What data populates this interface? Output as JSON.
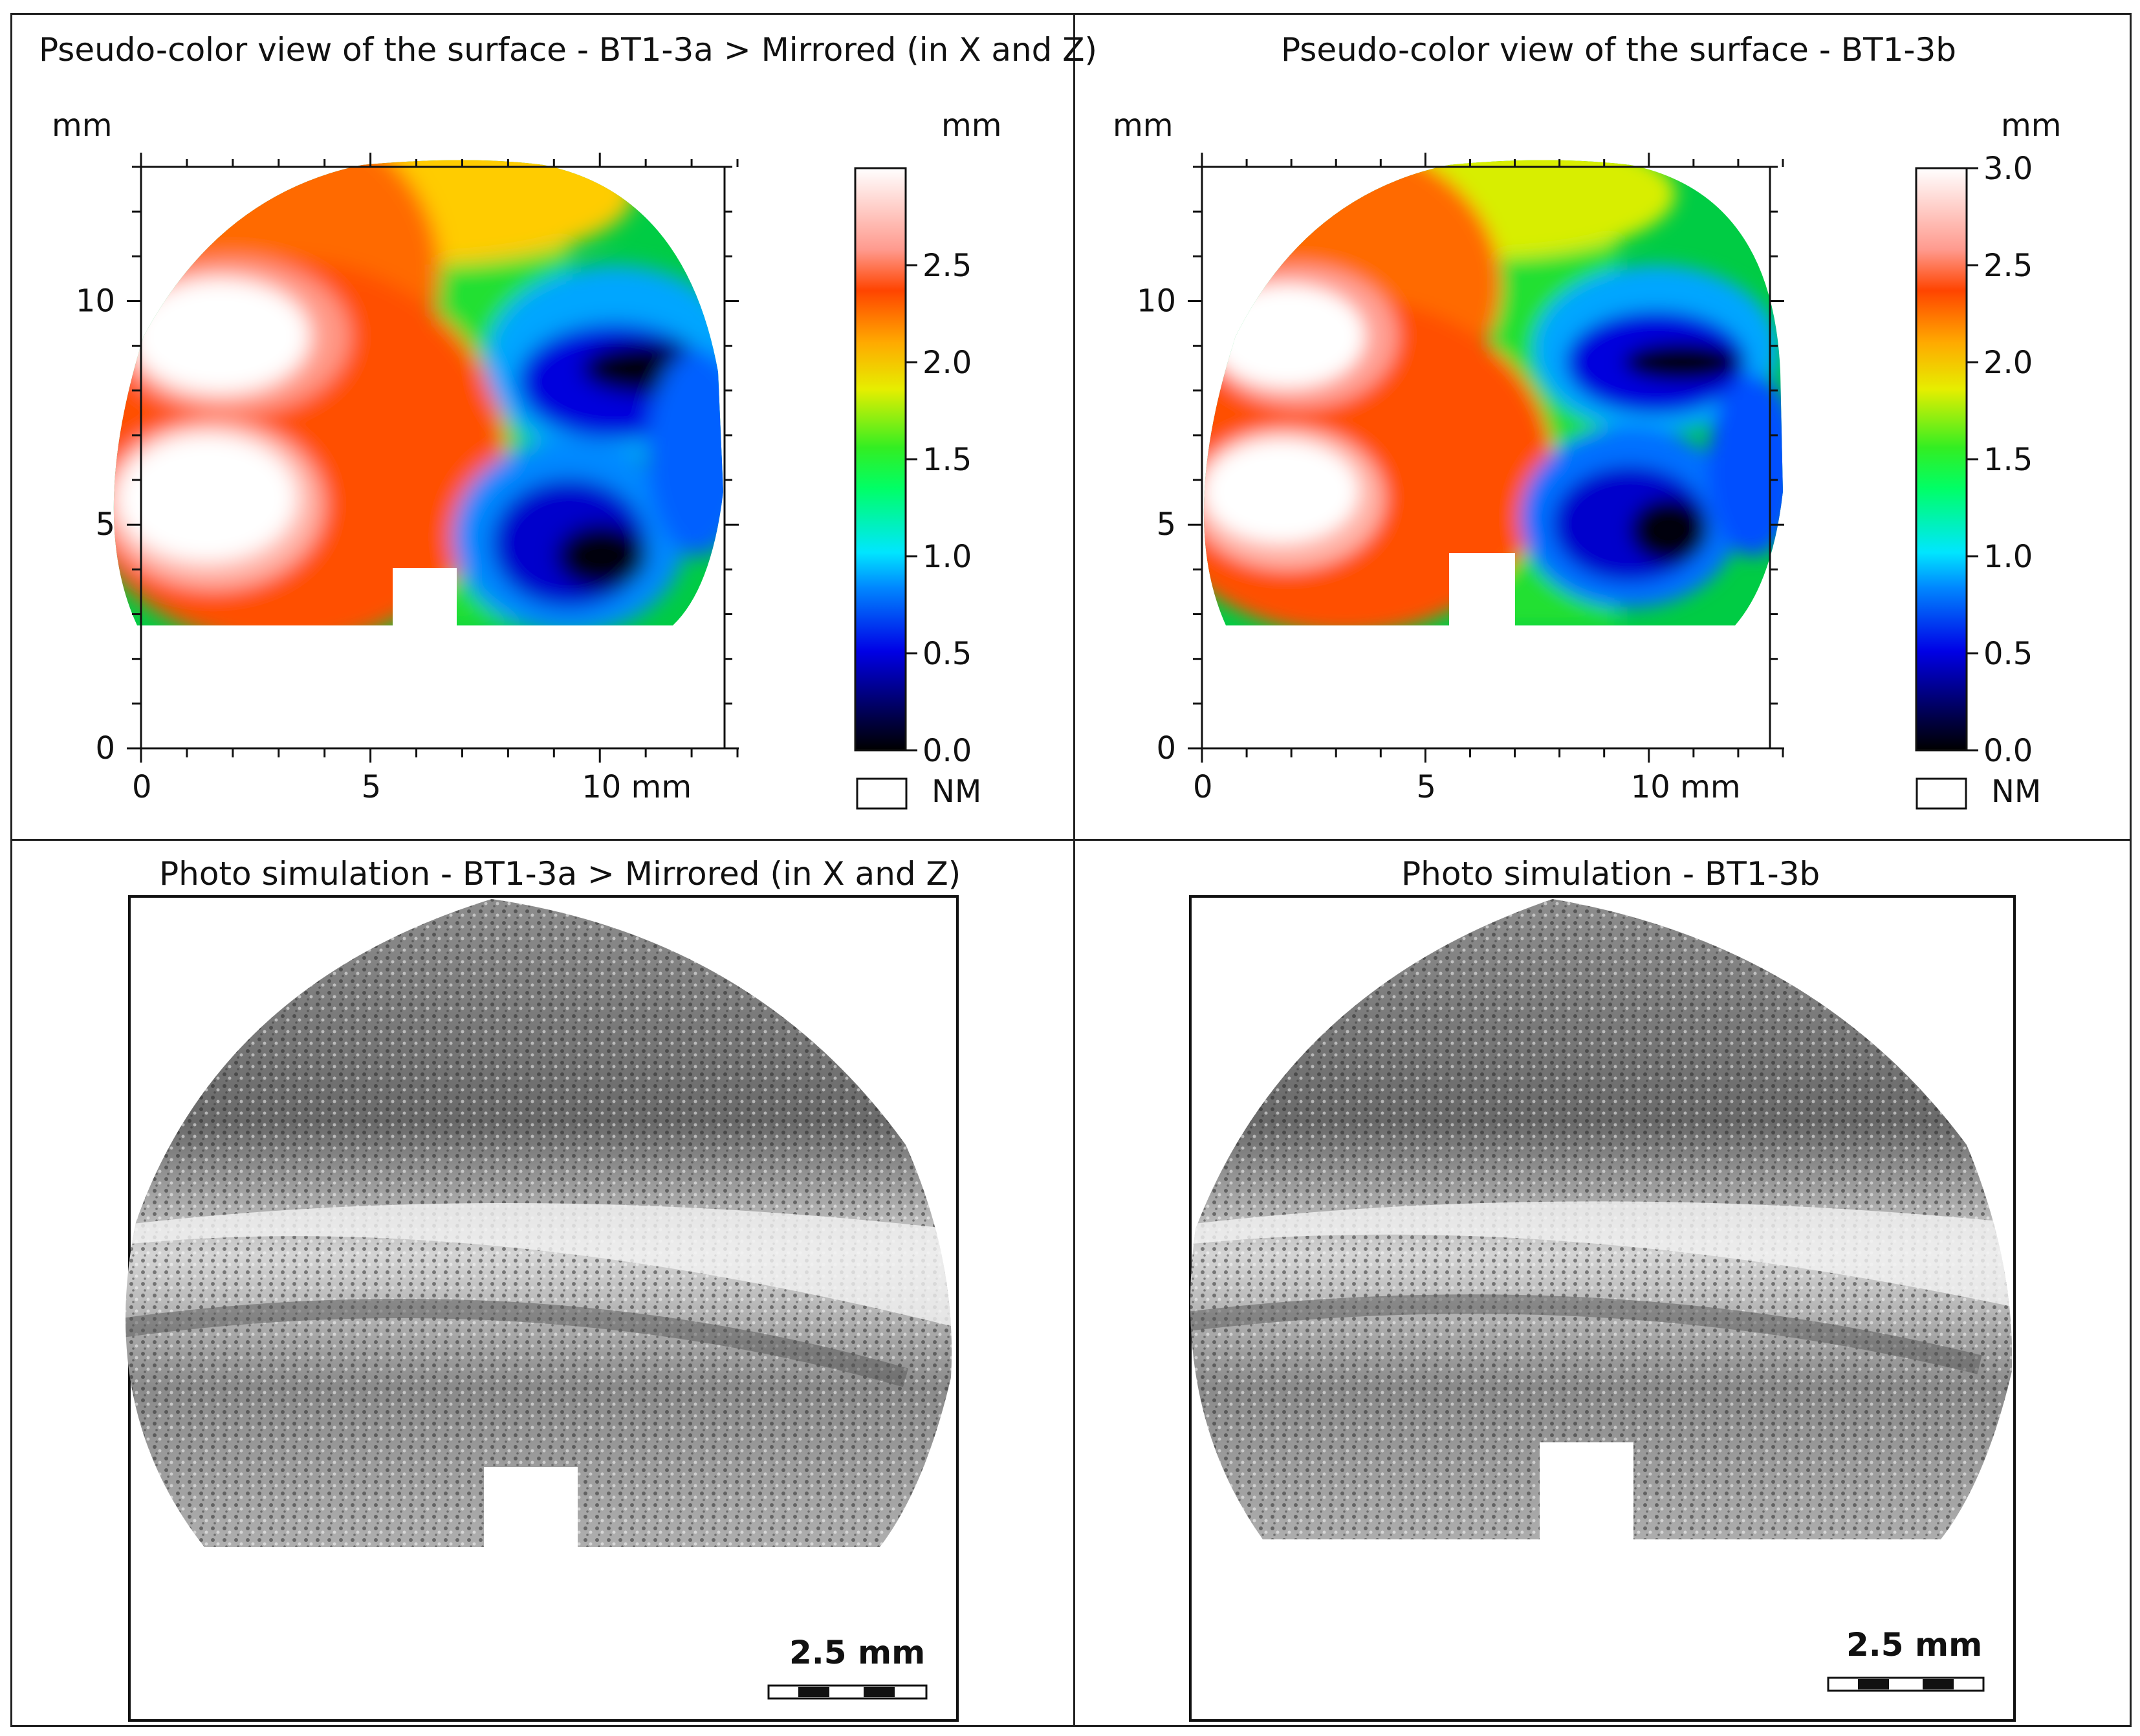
{
  "figure": {
    "panels": [
      {
        "id": "a-color",
        "title": "Pseudo-color view of the surface - BT1-3a > Mirrored (in X and Z)"
      },
      {
        "id": "b-color",
        "title": "Pseudo-color view of the surface - BT1-3b"
      },
      {
        "id": "a-photo",
        "title": "Photo simulation - BT1-3a > Mirrored (in X and Z)",
        "scale_label": "2.5 mm"
      },
      {
        "id": "b-photo",
        "title": "Photo simulation - BT1-3b",
        "scale_label": "2.5 mm"
      }
    ]
  },
  "chart_data": [
    {
      "type": "heatmap",
      "title": "Pseudo-color view of the surface - BT1-3a > Mirrored (in X and Z)",
      "x_unit": "mm",
      "y_unit": "mm",
      "x_ticks": [
        "0",
        "5",
        "10 mm"
      ],
      "y_ticks": [
        "0",
        "5",
        "10"
      ],
      "xlim": [
        0,
        13
      ],
      "ylim": [
        0,
        13
      ],
      "colorbar": {
        "unit": "mm",
        "ticks": [
          "0.0",
          "0.5",
          "1.0",
          "1.5",
          "2.0",
          "2.5"
        ],
        "range": [
          0,
          3.0
        ],
        "nm_label": "NM"
      }
    },
    {
      "type": "heatmap",
      "title": "Pseudo-color view of the surface - BT1-3b",
      "x_unit": "mm",
      "y_unit": "mm",
      "x_ticks": [
        "0",
        "5",
        "10 mm"
      ],
      "y_ticks": [
        "0",
        "5",
        "10"
      ],
      "xlim": [
        0,
        13
      ],
      "ylim": [
        0,
        13
      ],
      "colorbar": {
        "unit": "mm",
        "ticks": [
          "0.0",
          "0.5",
          "1.0",
          "1.5",
          "2.0",
          "2.5",
          "3.0"
        ],
        "range": [
          0,
          3.0
        ],
        "nm_label": "NM"
      }
    }
  ],
  "colors": {
    "frame": "#222222",
    "axis": "#111111"
  }
}
